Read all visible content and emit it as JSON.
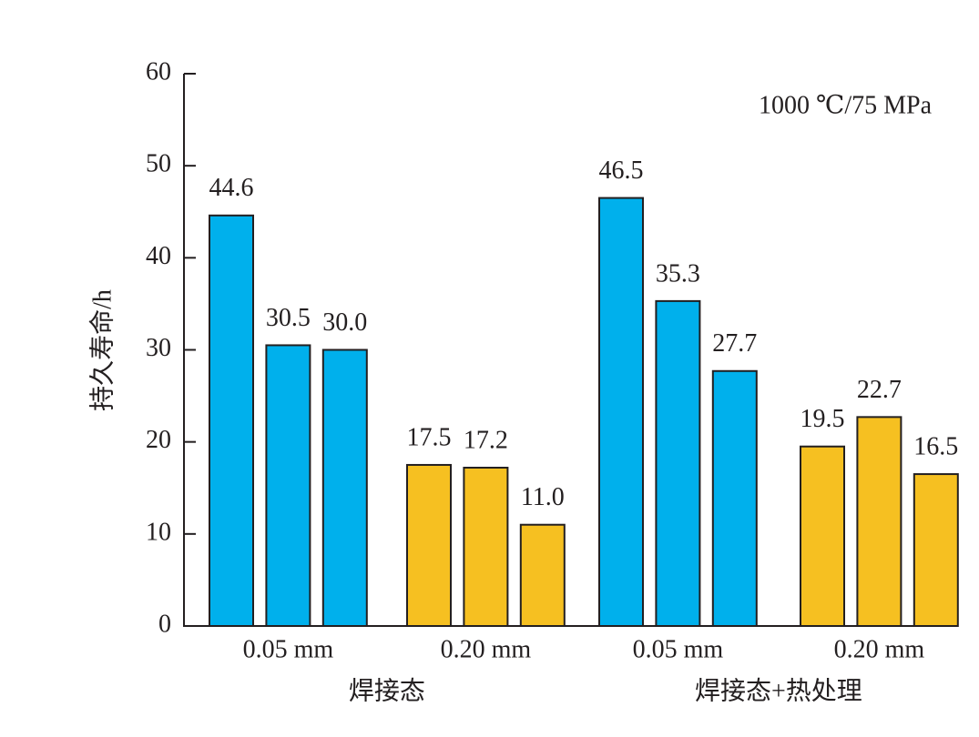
{
  "chart_data": {
    "type": "grouped-bar",
    "y_label": "持久寿命/h",
    "annotation": "1000 ℃/75 MPa",
    "ylim": [
      0,
      60
    ],
    "yticks": [
      0,
      10,
      20,
      30,
      40,
      50,
      60
    ],
    "groups": [
      {
        "category": "0.05 mm",
        "color": "#00b0ec",
        "values": [
          44.6,
          30.5,
          30.0
        ],
        "value_labels": [
          "44.6",
          "30.5",
          "30.0"
        ]
      },
      {
        "category": "0.20 mm",
        "color": "#f6c021",
        "values": [
          17.5,
          17.2,
          11.0
        ],
        "value_labels": [
          "17.5",
          "17.2",
          "11.0"
        ]
      },
      {
        "category": "0.05 mm",
        "color": "#00b0ec",
        "values": [
          46.5,
          35.3,
          27.7
        ],
        "value_labels": [
          "46.5",
          "35.3",
          "27.7"
        ]
      },
      {
        "category": "0.20 mm",
        "color": "#f6c021",
        "values": [
          19.5,
          22.7,
          16.5
        ],
        "value_labels": [
          "19.5",
          "22.7",
          "16.5"
        ]
      }
    ],
    "supercategories": [
      "焊接态",
      "焊接态+热处理"
    ]
  }
}
